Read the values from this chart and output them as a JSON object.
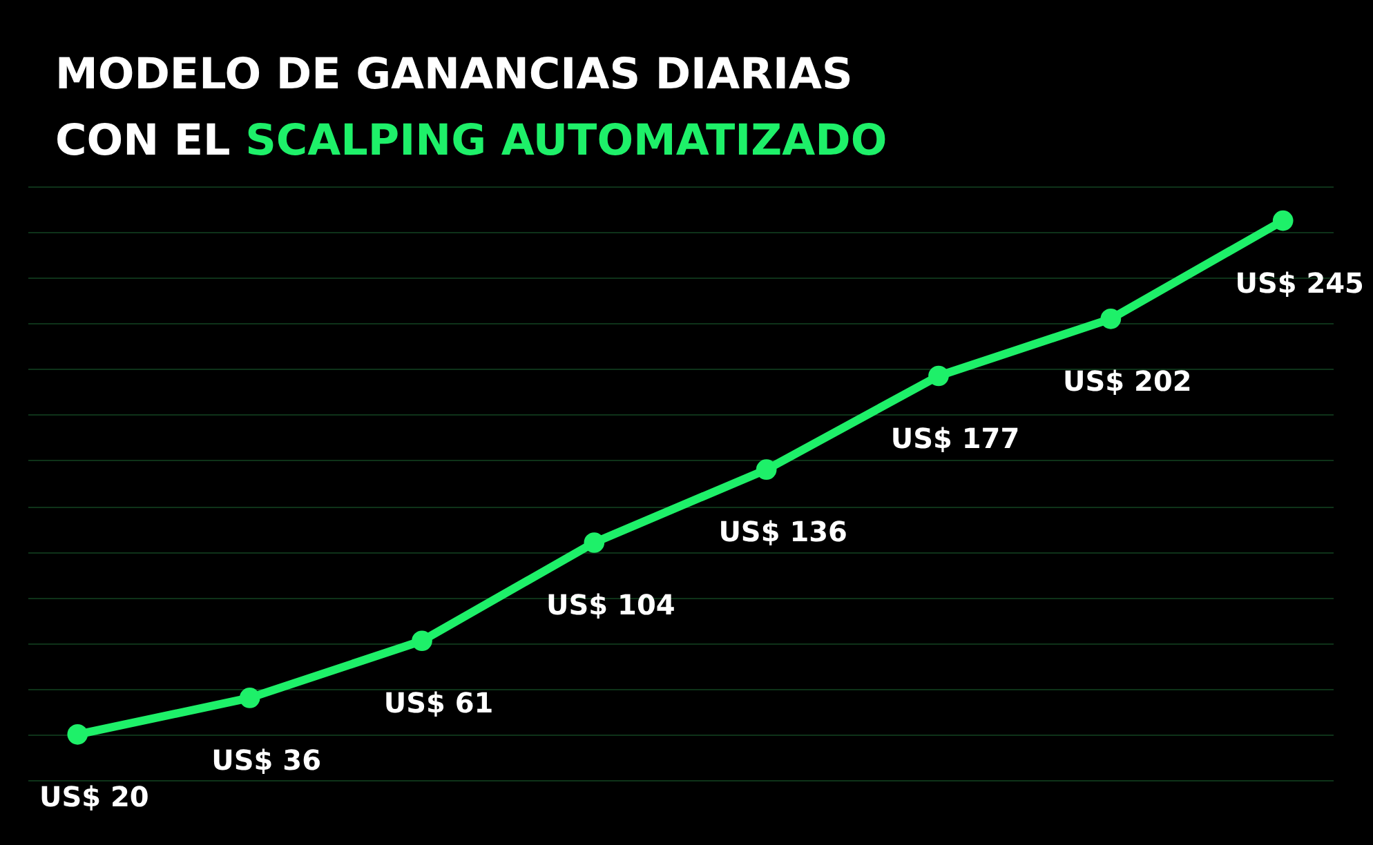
{
  "chart_data": {
    "type": "line",
    "title": "MODELO DE GANANCIAS DIARIAS CON EL",
    "subtitle": "SCALPING AUTOMATIZADO",
    "categories": [
      null,
      null,
      null,
      null,
      null,
      null,
      null,
      null
    ],
    "series": [
      {
        "color": "#1ef069",
        "values": [
          20,
          36,
          61,
          104,
          136,
          177,
          202,
          245
        ],
        "value_labels": [
          "US$ 20",
          "US$ 36",
          "US$ 61",
          "US$ 104",
          "US$ 136",
          "US$ 177",
          "US$ 202",
          "US$ 245"
        ]
      }
    ],
    "grid": "y",
    "tick_labels": false,
    "marker": "circle",
    "line_style": "solid"
  }
}
